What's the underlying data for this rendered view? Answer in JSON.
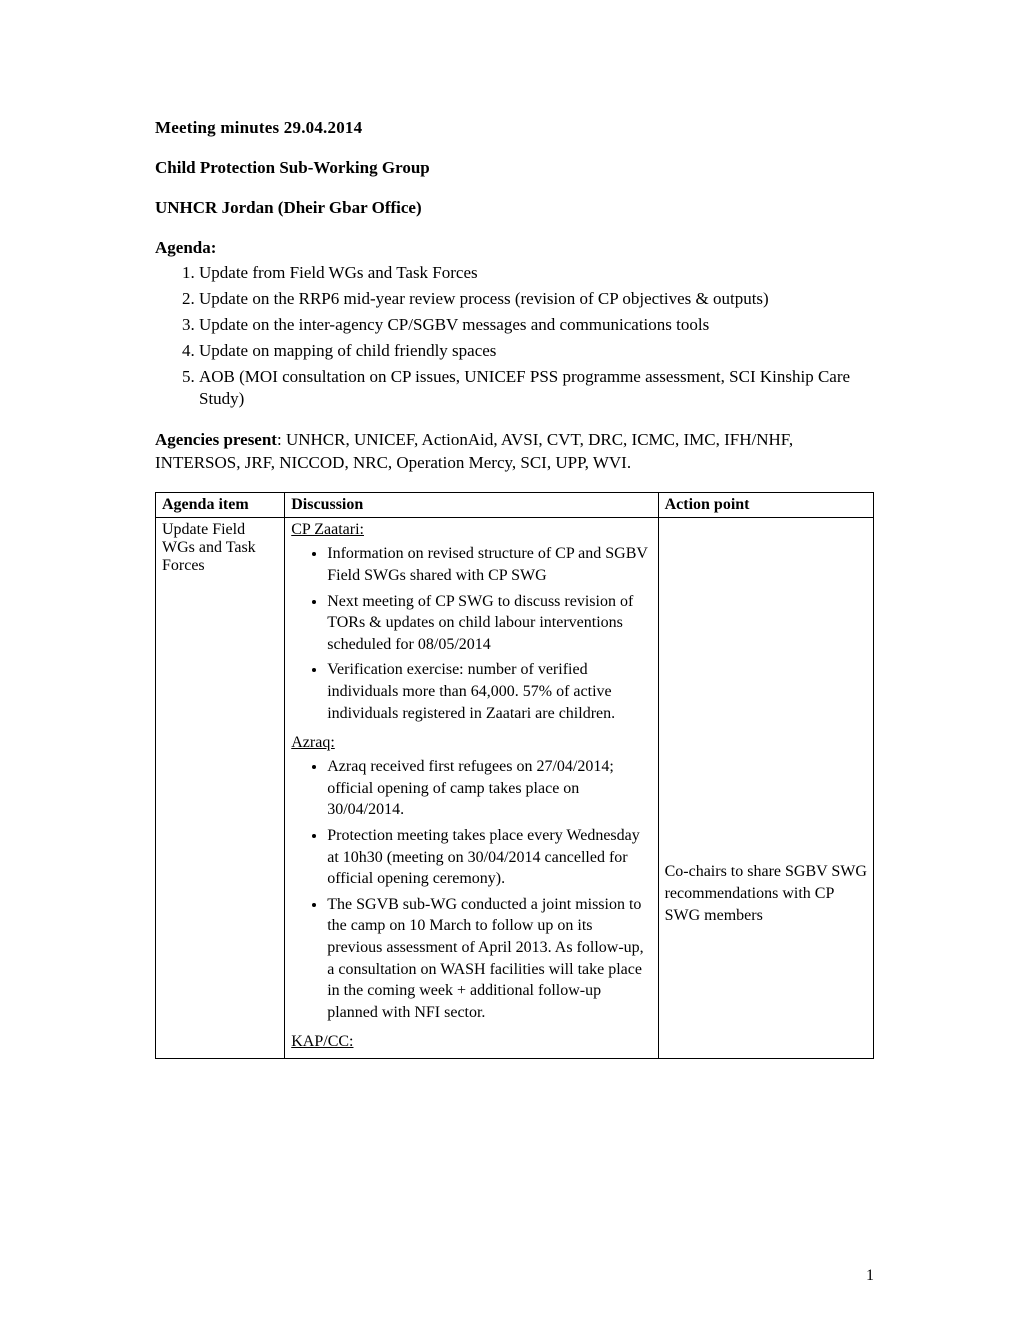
{
  "header": {
    "title": "Meeting minutes 29.04.2014",
    "group": "Child Protection Sub-Working Group",
    "office": "UNHCR Jordan (Dheir Gbar Office)"
  },
  "agenda": {
    "heading": "Agenda:",
    "items": [
      "Update from Field WGs and Task Forces",
      "Update on the RRP6 mid-year review process (revision of CP objectives & outputs)",
      "Update on the inter-agency CP/SGBV messages and communications tools",
      "Update on mapping of child friendly spaces",
      "AOB (MOI consultation on CP issues, UNICEF PSS programme assessment, SCI Kinship Care Study)"
    ]
  },
  "agencies": {
    "label": "Agencies present",
    "text": ": UNHCR, UNICEF, ActionAid, AVSI, CVT, DRC, ICMC, IMC, IFH/NHF, INTERSOS, JRF, NICCOD, NRC, Operation Mercy, SCI, UPP, WVI."
  },
  "table": {
    "headers": {
      "c1": "Agenda item",
      "c2": "Discussion",
      "c3": "Action point"
    },
    "row1": {
      "agenda_item": "Update Field WGs and Task Forces",
      "discussion": {
        "zaatari_head": "CP Zaatari:",
        "zaatari_items": [
          "Information on revised structure of CP and SGBV Field SWGs shared with CP SWG",
          "Next meeting of CP SWG to discuss revision of TORs & updates on child labour interventions scheduled for 08/05/2014",
          "Verification exercise: number of verified individuals more than 64,000. 57% of active individuals registered in Zaatari are children."
        ],
        "azraq_head": "Azraq:",
        "azraq_items": [
          "Azraq received first refugees on 27/04/2014; official opening of camp takes place on 30/04/2014.",
          "Protection meeting takes place every Wednesday at 10h30 (meeting on 30/04/2014 cancelled for official opening ceremony).",
          "The SGVB sub-WG conducted a joint mission to the camp on 10 March to follow up on its previous assessment of April 2013. As follow-up, a consultation on WASH facilities will take place in the coming week + additional follow-up planned with NFI sector."
        ],
        "kapcc_head": "KAP/CC:"
      },
      "action": "Co-chairs to share SGBV SWG recommendations with CP SWG members"
    }
  },
  "page_number": "1"
}
